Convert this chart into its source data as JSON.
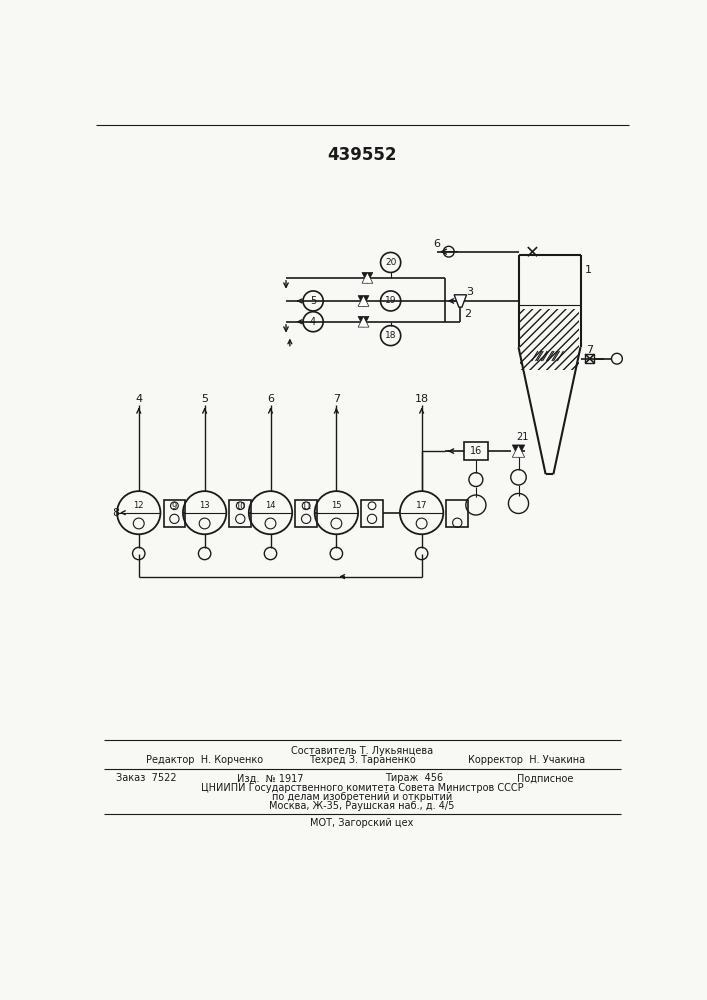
{
  "patent_number": "439552",
  "bg_color": "#f8f8f5",
  "line_color": "#1a1a1a",
  "text_color": "#1a1a1a",
  "footer": {
    "line1_left": "Редактор  Н. Корченко",
    "line1_center": "Составитель Т. Лукьянцева",
    "line1_center2": "Техред З. Тараненко",
    "line1_right": "Корректор  Н. Учакина",
    "line2_col1": "Заказ  7522",
    "line2_col2": "Изд.  № 1917",
    "line2_col3": "Тираж  456",
    "line2_col4": "Подписное",
    "line3": "ЦНИИПИ Государственного комитета Совета Министров СССР",
    "line4": "по делам изобретений и открытий",
    "line5": "Москва, Ж-35, Раушская наб., д. 4/5",
    "line6": "МОТ, Загорский цех"
  }
}
